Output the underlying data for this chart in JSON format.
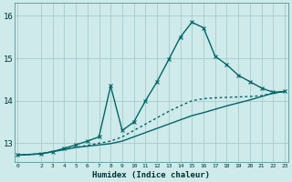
{
  "xlabel": "Humidex (Indice chaleur)",
  "bg_color": "#ceeaea",
  "grid_color": "#a8cccc",
  "line_color": "#006666",
  "ylim": [
    12.55,
    16.3
  ],
  "xlim": [
    -0.3,
    23.3
  ],
  "yticks": [
    13,
    14,
    15,
    16
  ],
  "xticks": [
    0,
    2,
    3,
    4,
    5,
    6,
    7,
    8,
    9,
    10,
    11,
    12,
    13,
    14,
    15,
    16,
    17,
    18,
    19,
    20,
    21,
    22,
    23
  ],
  "series": [
    {
      "x": [
        0,
        2,
        3,
        4,
        5,
        6,
        7,
        8,
        9,
        10,
        11,
        12,
        13,
        14,
        15,
        16,
        17,
        18,
        19,
        20,
        21,
        22,
        23
      ],
      "y": [
        12.72,
        12.75,
        12.8,
        12.85,
        12.9,
        12.95,
        13.0,
        13.05,
        13.15,
        13.3,
        13.45,
        13.6,
        13.75,
        13.88,
        14.0,
        14.05,
        14.07,
        14.08,
        14.09,
        14.1,
        14.12,
        14.18,
        14.22
      ],
      "linestyle": "dotted",
      "marker": null,
      "linewidth": 1.0
    },
    {
      "x": [
        0,
        2,
        3,
        4,
        5,
        6,
        7,
        8,
        9,
        10,
        11,
        12,
        13,
        14,
        15,
        16,
        17,
        18,
        19,
        20,
        21,
        22,
        23
      ],
      "y": [
        12.72,
        12.75,
        12.8,
        12.85,
        12.9,
        12.93,
        12.96,
        12.99,
        13.05,
        13.15,
        13.25,
        13.35,
        13.45,
        13.55,
        13.65,
        13.72,
        13.8,
        13.88,
        13.95,
        14.02,
        14.1,
        14.18,
        14.22
      ],
      "linestyle": "solid",
      "marker": null,
      "linewidth": 1.0
    },
    {
      "x": [
        0,
        2,
        3,
        4,
        5,
        6,
        7,
        8,
        9,
        10,
        11,
        12,
        13,
        14,
        15,
        16,
        17,
        18,
        19,
        20,
        21,
        22,
        23
      ],
      "y": [
        12.72,
        12.75,
        12.8,
        12.88,
        12.96,
        13.05,
        13.15,
        14.35,
        13.3,
        13.5,
        14.0,
        14.45,
        14.97,
        15.5,
        15.85,
        15.72,
        15.05,
        14.85,
        14.6,
        14.45,
        14.3,
        14.2,
        14.22
      ],
      "linestyle": "solid",
      "marker": "x",
      "linewidth": 1.0
    }
  ]
}
